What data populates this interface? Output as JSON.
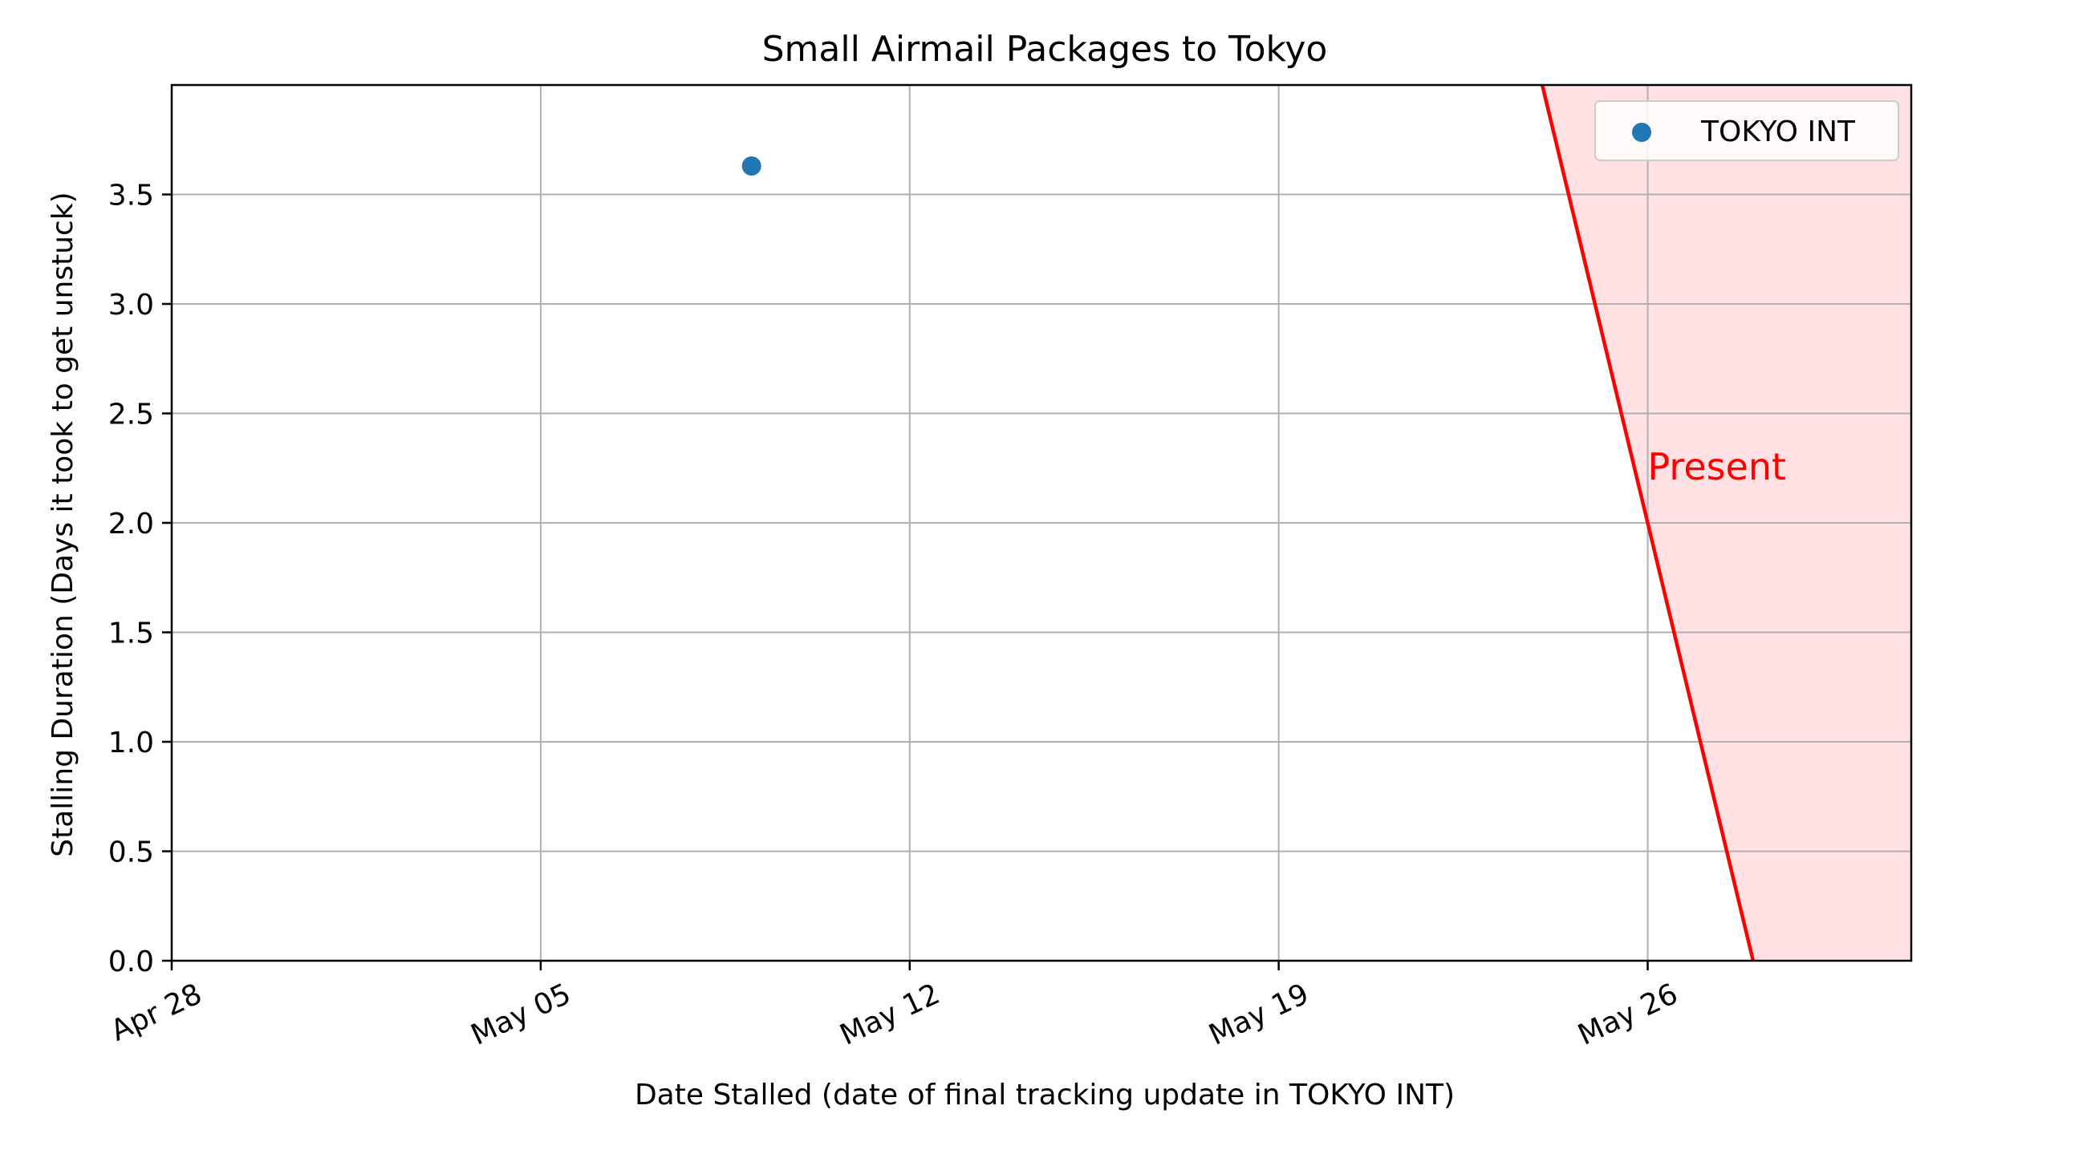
{
  "chart_data": {
    "type": "scatter",
    "title": "Small Airmail Packages to Tokyo",
    "xlabel": "Date Stalled (date of final tracking update in TOKYO INT)",
    "ylabel": "Stalling Duration (Days it took to get unstuck)",
    "x_axis": {
      "type": "date",
      "range": [
        "2025-04-28",
        "2025-05-31"
      ],
      "ticks": [
        {
          "date": "2025-04-28",
          "label": "Apr 28"
        },
        {
          "date": "2025-05-05",
          "label": "May 05"
        },
        {
          "date": "2025-05-12",
          "label": "May 12"
        },
        {
          "date": "2025-05-19",
          "label": "May 19"
        },
        {
          "date": "2025-05-26",
          "label": "May 26"
        }
      ]
    },
    "y_axis": {
      "range": [
        0,
        4
      ],
      "ticks": [
        "0.0",
        "0.5",
        "1.0",
        "1.5",
        "2.0",
        "2.5",
        "3.0",
        "3.5"
      ]
    },
    "grid": true,
    "legend_position": "top-right",
    "series": [
      {
        "name": "TOKYO INT",
        "color": "#1f77b4",
        "points": [
          {
            "x": "2025-05-09",
            "y": 3.63
          }
        ]
      }
    ],
    "annotation": {
      "text": "Present",
      "color": "#ff0000",
      "line": [
        {
          "x": "2025-05-24",
          "y": 4.0
        },
        {
          "x": "2025-05-28",
          "y": 0.0
        }
      ],
      "fill_color": "#ffe0e3",
      "label_at": {
        "x": "2025-05-26",
        "y": 2.3
      }
    }
  }
}
